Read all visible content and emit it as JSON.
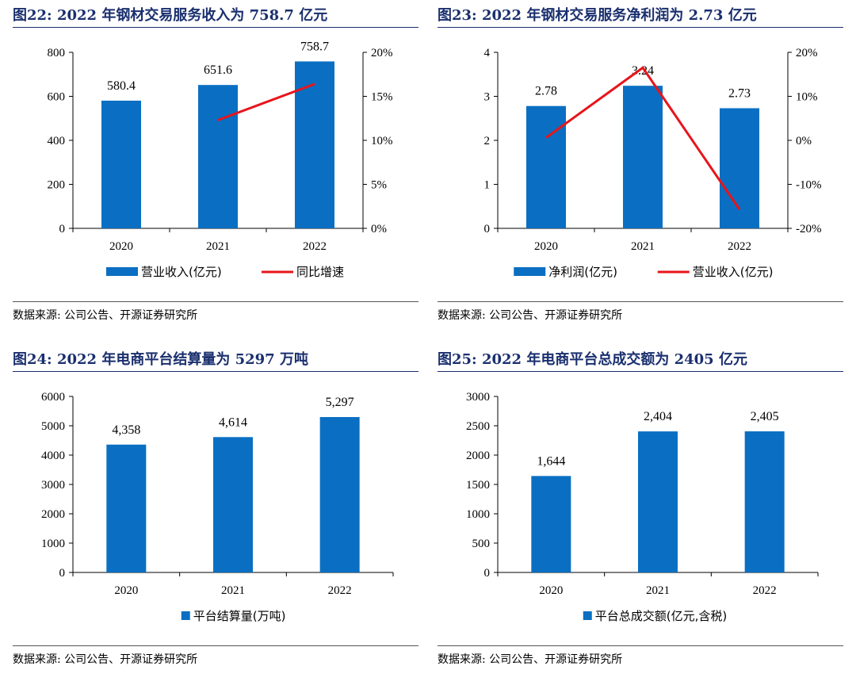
{
  "panels": [
    {
      "title": "图22:  2022 年钢材交易服务收入为 758.7 亿元",
      "source": "数据来源:  公司公告、开源证券研究所",
      "chart_data": {
        "type": "bar",
        "categories": [
          "2020",
          "2021",
          "2022"
        ],
        "series": [
          {
            "name": "营业收入(亿元)",
            "type": "bar",
            "axis": "left",
            "values": [
              580.4,
              651.6,
              758.7
            ],
            "labels": [
              "580.4",
              "651.6",
              "758.7"
            ]
          },
          {
            "name": "同比增速",
            "type": "line",
            "axis": "right",
            "values": [
              null,
              12.3,
              16.4
            ]
          }
        ],
        "ylim": [
          0,
          800
        ],
        "yticks": [
          0,
          200,
          400,
          600,
          800
        ],
        "ylim2": [
          0,
          20
        ],
        "yticks2": [
          "0%",
          "5%",
          "10%",
          "15%",
          "20%"
        ],
        "legend": [
          "营业收入(亿元)",
          "同比增速"
        ]
      }
    },
    {
      "title": "图23:  2022 年钢材交易服务净利润为 2.73 亿元",
      "source": "数据来源:  公司公告、开源证券研究所",
      "chart_data": {
        "type": "bar",
        "categories": [
          "2020",
          "2021",
          "2022"
        ],
        "series": [
          {
            "name": "净利润(亿元)",
            "type": "bar",
            "axis": "left",
            "values": [
              2.78,
              3.24,
              2.73
            ],
            "labels": [
              "2.78",
              "3.24",
              "2.73"
            ]
          },
          {
            "name": "营业收入(亿元)",
            "type": "line",
            "axis": "right",
            "values": [
              0.6,
              16.5,
              -15.7
            ]
          }
        ],
        "ylim": [
          0,
          4
        ],
        "yticks": [
          0,
          1,
          2,
          3,
          4
        ],
        "ylim2": [
          -20,
          20
        ],
        "yticks2": [
          "-20%",
          "-10%",
          "0%",
          "10%",
          "20%"
        ],
        "legend": [
          "净利润(亿元)",
          "营业收入(亿元)"
        ]
      }
    },
    {
      "title": "图24:  2022 年电商平台结算量为 5297 万吨",
      "source": "数据来源:  公司公告、开源证券研究所",
      "chart_data": {
        "type": "bar",
        "categories": [
          "2020",
          "2021",
          "2022"
        ],
        "series": [
          {
            "name": "平台结算量(万吨)",
            "type": "bar",
            "axis": "left",
            "values": [
              4358,
              4614,
              5297
            ],
            "labels": [
              "4,358",
              "4,614",
              "5,297"
            ]
          }
        ],
        "ylim": [
          0,
          6000
        ],
        "yticks": [
          0,
          1000,
          2000,
          3000,
          4000,
          5000,
          6000
        ],
        "legend": [
          "平台结算量(万吨)"
        ]
      }
    },
    {
      "title": "图25:  2022 年电商平台总成交额为 2405 亿元",
      "source": "数据来源:  公司公告、开源证券研究所",
      "chart_data": {
        "type": "bar",
        "categories": [
          "2020",
          "2021",
          "2022"
        ],
        "series": [
          {
            "name": "平台总成交额(亿元,含税)",
            "type": "bar",
            "axis": "left",
            "values": [
              1644,
              2404,
              2405
            ],
            "labels": [
              "1,644",
              "2,404",
              "2,405"
            ]
          }
        ],
        "ylim": [
          0,
          3000
        ],
        "yticks": [
          0,
          500,
          1000,
          1500,
          2000,
          2500,
          3000
        ],
        "legend": [
          "平台总成交额(亿元,含税)"
        ]
      }
    }
  ],
  "colors": {
    "bar": "#0a6fc2",
    "line": "#e8141b",
    "title": "#1a2f6e",
    "axis": "#000000"
  }
}
